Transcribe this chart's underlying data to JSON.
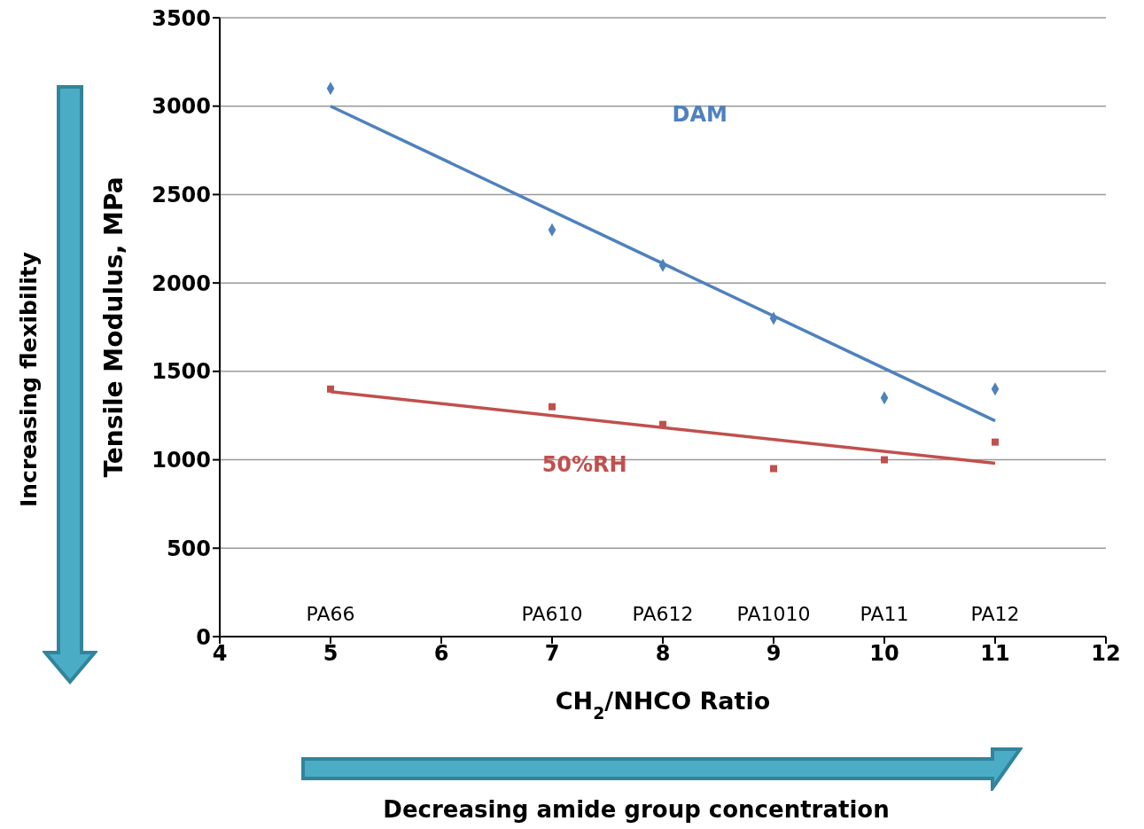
{
  "chart_data": {
    "type": "scatter",
    "xlabel": "CH$_{2}$/NHCO Ratio",
    "ylabel": "Tensile Modulus, MPa",
    "xlim": [
      4,
      12
    ],
    "xticks": [
      4,
      5,
      6,
      7,
      8,
      9,
      10,
      11,
      12
    ],
    "ylim": [
      0,
      3500
    ],
    "yticks": [
      0,
      500,
      1000,
      1500,
      2000,
      2500,
      3000,
      3500
    ],
    "grid": "y",
    "series": [
      {
        "name": "DAM",
        "marker": "diamond",
        "color": "#4f81bd",
        "x": [
          5,
          7,
          8,
          9,
          10,
          11
        ],
        "values": [
          3100,
          2300,
          2100,
          1800,
          1350,
          1400
        ]
      },
      {
        "name": "50%RH",
        "marker": "square",
        "color": "#c0504d",
        "x": [
          5,
          7,
          8,
          9,
          10,
          11
        ],
        "values": [
          1400,
          1300,
          1200,
          950,
          1000,
          1100
        ]
      },
      {
        "type": "line",
        "marker": "none",
        "color": "#4f81bd",
        "x": [
          5,
          11
        ],
        "values": [
          3000,
          1220
        ]
      },
      {
        "type": "line",
        "marker": "none",
        "color": "#c0504d",
        "x": [
          5,
          11
        ],
        "values": [
          1385,
          980
        ]
      }
    ],
    "annotations": [
      "Increasing flexibility",
      "Decreasing amide group concentration",
      "PA66",
      "PA610",
      "PA612",
      "PA1010",
      "PA11",
      "PA12"
    ]
  }
}
